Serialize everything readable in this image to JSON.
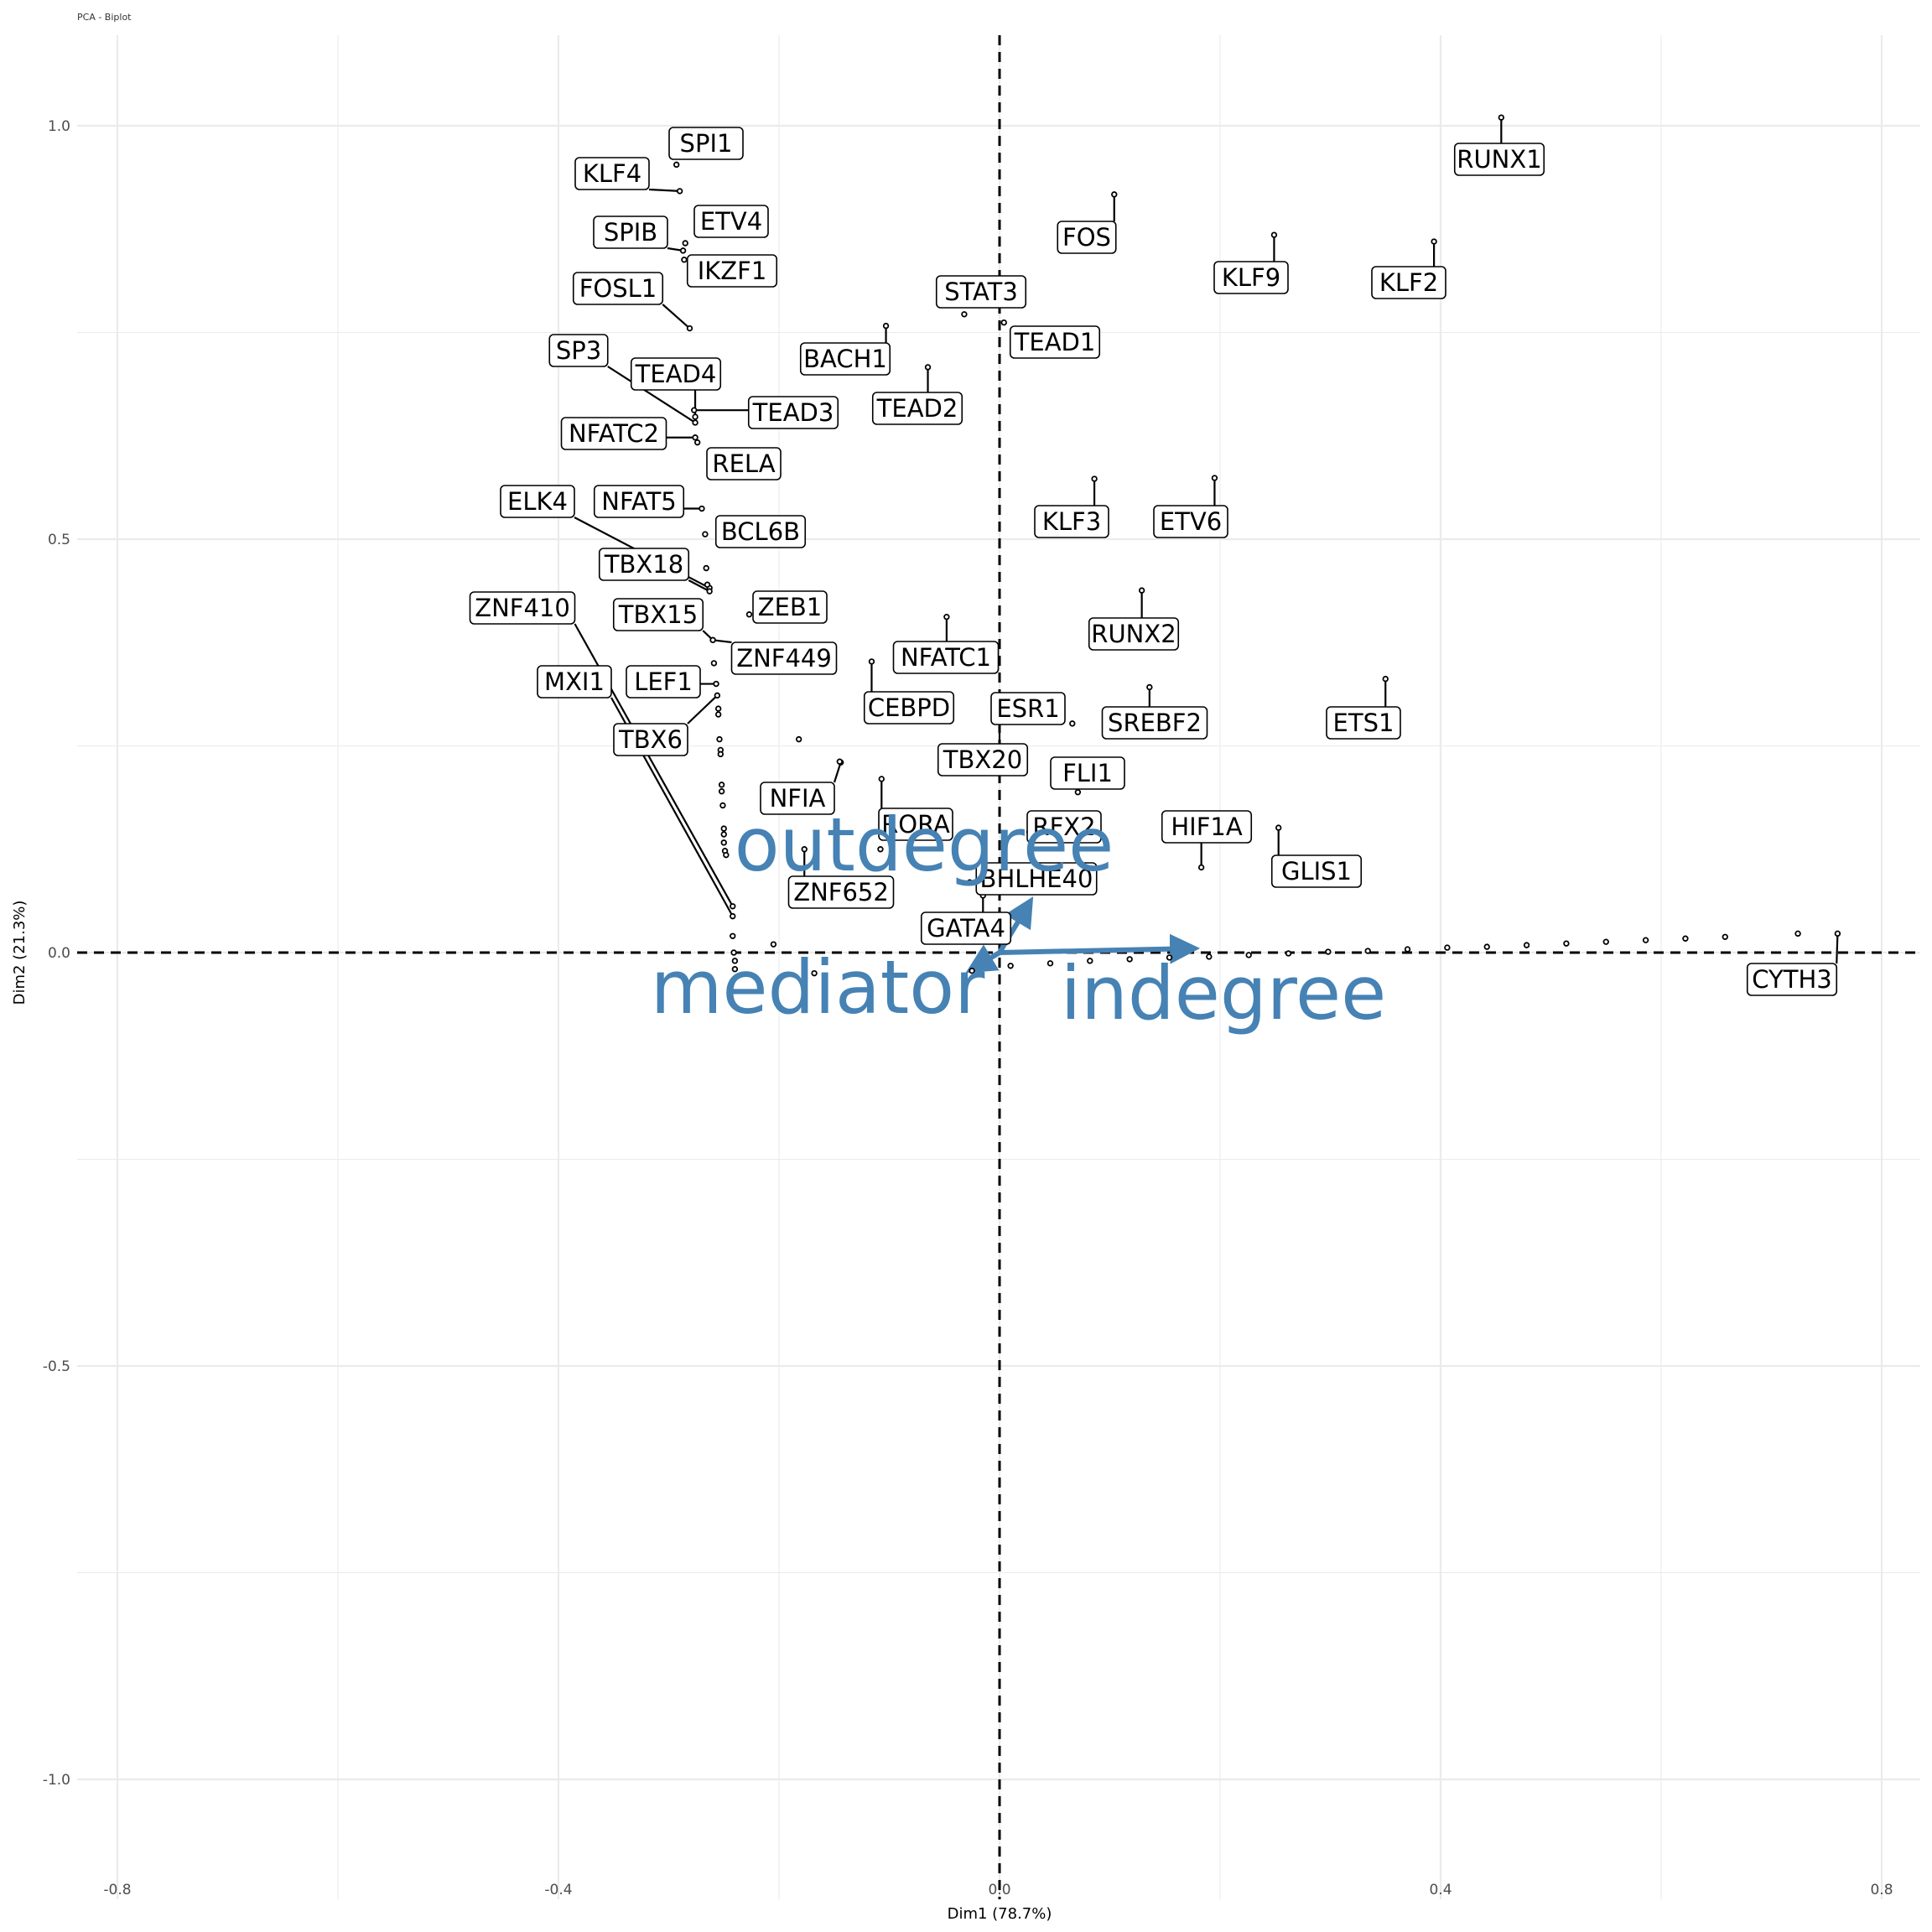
{
  "chart_data": {
    "type": "scatter",
    "title": "PCA - Biplot",
    "xlabel": "Dim1 (78.7%)",
    "ylabel": "Dim2 (21.3%)",
    "xlim": [
      -0.85,
      0.83
    ],
    "ylim": [
      -1.1,
      1.1
    ],
    "x_ticks": [
      -0.8,
      -0.4,
      0.0,
      0.4,
      0.8
    ],
    "x_tick_labels": [
      "-0.8",
      "-0.4",
      "0.0",
      "0.4",
      "0.8"
    ],
    "y_ticks": [
      -1.0,
      -0.5,
      0.0,
      0.5,
      1.0
    ],
    "y_tick_labels": [
      "-1.0",
      "-0.5",
      "0.0",
      "0.5",
      "1.0"
    ],
    "grid": true,
    "reference_lines": {
      "x": 0,
      "y": 0,
      "style": "dashed"
    },
    "colors": {
      "variables": "#4682B4",
      "points": "#000000",
      "grid": "#ebebeb"
    },
    "points": [
      {
        "name": "RUNX1",
        "x": 0.455,
        "y": 1.01
      },
      {
        "name": "KLF2",
        "x": 0.394,
        "y": 0.86
      },
      {
        "name": "KLF9",
        "x": 0.249,
        "y": 0.868
      },
      {
        "name": "FOS",
        "x": 0.104,
        "y": 0.917
      },
      {
        "name": "SPI1",
        "x": -0.293,
        "y": 0.953
      },
      {
        "name": "KLF4",
        "x": -0.29,
        "y": 0.921
      },
      {
        "name": "ETV4",
        "x": -0.285,
        "y": 0.858
      },
      {
        "name": "SPIB",
        "x": -0.287,
        "y": 0.849
      },
      {
        "name": "IKZF1",
        "x": -0.286,
        "y": 0.838
      },
      {
        "name": "STAT3",
        "x": -0.032,
        "y": 0.772
      },
      {
        "name": "TEAD1",
        "x": 0.004,
        "y": 0.762
      },
      {
        "name": "BACH1",
        "x": -0.103,
        "y": 0.758
      },
      {
        "name": "FOSL1",
        "x": -0.281,
        "y": 0.755
      },
      {
        "name": "TEAD2",
        "x": -0.065,
        "y": 0.708
      },
      {
        "name": "SP3",
        "x": -0.276,
        "y": 0.641
      },
      {
        "name": "TEAD3",
        "x": -0.277,
        "y": 0.656
      },
      {
        "name": "TEAD4",
        "x": -0.276,
        "y": 0.648
      },
      {
        "name": "NFATC2",
        "x": -0.276,
        "y": 0.623
      },
      {
        "name": "RELA",
        "x": -0.274,
        "y": 0.617
      },
      {
        "name": "KLF3",
        "x": 0.086,
        "y": 0.573
      },
      {
        "name": "ETV6",
        "x": 0.195,
        "y": 0.574
      },
      {
        "name": "NFAT5",
        "x": -0.27,
        "y": 0.537
      },
      {
        "name": "BCL6B",
        "x": -0.267,
        "y": 0.506
      },
      {
        "name": "ELK4",
        "x": -0.263,
        "y": 0.441
      },
      {
        "name": "TBX18",
        "x": -0.263,
        "y": 0.437
      },
      {
        "name": "RUNX2",
        "x": 0.129,
        "y": 0.438
      },
      {
        "name": "ZEB1",
        "x": -0.227,
        "y": 0.409
      },
      {
        "name": "NFATC1",
        "x": -0.048,
        "y": 0.406
      },
      {
        "name": "TBX15",
        "x": -0.26,
        "y": 0.378
      },
      {
        "name": "ZNF449",
        "x": -0.26,
        "y": 0.378
      },
      {
        "name": "CEBPD",
        "x": -0.116,
        "y": 0.352
      },
      {
        "name": "ETS1",
        "x": 0.35,
        "y": 0.331
      },
      {
        "name": "SREBF2",
        "x": 0.136,
        "y": 0.321
      },
      {
        "name": "ESR1",
        "x": 0.066,
        "y": 0.277
      },
      {
        "name": "LEF1",
        "x": -0.257,
        "y": 0.325
      },
      {
        "name": "TBX6",
        "x": -0.256,
        "y": 0.311
      },
      {
        "name": "TBX20",
        "x": 0.0,
        "y": 0.282
      },
      {
        "name": "FLI1",
        "x": 0.071,
        "y": 0.194
      },
      {
        "name": "NFIA",
        "x": -0.144,
        "y": 0.23
      },
      {
        "name": "RORA",
        "x": -0.107,
        "y": 0.21
      },
      {
        "name": "RFX2",
        "x": 0.027,
        "y": 0.146
      },
      {
        "name": "HIF1A",
        "x": 0.183,
        "y": 0.103
      },
      {
        "name": "GLIS1",
        "x": 0.253,
        "y": 0.151
      },
      {
        "name": "ZNF410",
        "x": -0.242,
        "y": 0.056
      },
      {
        "name": "MXI1",
        "x": -0.242,
        "y": 0.044
      },
      {
        "name": "ZNF652",
        "x": -0.177,
        "y": 0.125
      },
      {
        "name": "BHLHE40",
        "x": -0.027,
        "y": 0.085
      },
      {
        "name": "GATA4",
        "x": -0.015,
        "y": 0.069
      },
      {
        "name": "CYTH3",
        "x": 0.76,
        "y": 0.023
      },
      {
        "name": "",
        "x": -0.266,
        "y": 0.465
      },
      {
        "name": "",
        "x": -0.265,
        "y": 0.445
      },
      {
        "name": "",
        "x": -0.259,
        "y": 0.35
      },
      {
        "name": "",
        "x": -0.255,
        "y": 0.295
      },
      {
        "name": "",
        "x": -0.255,
        "y": 0.288
      },
      {
        "name": "",
        "x": -0.254,
        "y": 0.258
      },
      {
        "name": "",
        "x": -0.253,
        "y": 0.245
      },
      {
        "name": "",
        "x": -0.253,
        "y": 0.24
      },
      {
        "name": "",
        "x": -0.252,
        "y": 0.203
      },
      {
        "name": "",
        "x": -0.252,
        "y": 0.195
      },
      {
        "name": "",
        "x": -0.251,
        "y": 0.178
      },
      {
        "name": "",
        "x": -0.25,
        "y": 0.15
      },
      {
        "name": "",
        "x": -0.25,
        "y": 0.143
      },
      {
        "name": "",
        "x": -0.25,
        "y": 0.133
      },
      {
        "name": "",
        "x": -0.249,
        "y": 0.123
      },
      {
        "name": "",
        "x": -0.248,
        "y": 0.118
      },
      {
        "name": "",
        "x": -0.242,
        "y": 0.02
      },
      {
        "name": "",
        "x": -0.241,
        "y": 0.0
      },
      {
        "name": "",
        "x": -0.24,
        "y": -0.01
      },
      {
        "name": "",
        "x": -0.24,
        "y": -0.02
      },
      {
        "name": "",
        "x": -0.205,
        "y": 0.01
      },
      {
        "name": "",
        "x": -0.182,
        "y": 0.258
      },
      {
        "name": "",
        "x": -0.145,
        "y": 0.231
      },
      {
        "name": "",
        "x": -0.168,
        "y": -0.025
      },
      {
        "name": "",
        "x": -0.108,
        "y": 0.125
      },
      {
        "name": "",
        "x": -0.025,
        "y": -0.022
      },
      {
        "name": "",
        "x": 0.01,
        "y": -0.016
      },
      {
        "name": "",
        "x": 0.046,
        "y": -0.013
      },
      {
        "name": "",
        "x": 0.082,
        "y": -0.01
      },
      {
        "name": "",
        "x": 0.118,
        "y": -0.008
      },
      {
        "name": "",
        "x": 0.154,
        "y": -0.006
      },
      {
        "name": "",
        "x": 0.19,
        "y": -0.005
      },
      {
        "name": "",
        "x": 0.226,
        "y": -0.003
      },
      {
        "name": "",
        "x": 0.262,
        "y": -0.001
      },
      {
        "name": "",
        "x": 0.298,
        "y": 0.001
      },
      {
        "name": "",
        "x": 0.334,
        "y": 0.002
      },
      {
        "name": "",
        "x": 0.37,
        "y": 0.004
      },
      {
        "name": "",
        "x": 0.406,
        "y": 0.006
      },
      {
        "name": "",
        "x": 0.442,
        "y": 0.007
      },
      {
        "name": "",
        "x": 0.478,
        "y": 0.009
      },
      {
        "name": "",
        "x": 0.514,
        "y": 0.011
      },
      {
        "name": "",
        "x": 0.55,
        "y": 0.013
      },
      {
        "name": "",
        "x": 0.586,
        "y": 0.015
      },
      {
        "name": "",
        "x": 0.622,
        "y": 0.017
      },
      {
        "name": "",
        "x": 0.658,
        "y": 0.019
      },
      {
        "name": "",
        "x": 0.724,
        "y": 0.023
      }
    ],
    "variables": [
      {
        "name": "indegree",
        "x": 0.175,
        "y": 0.005
      },
      {
        "name": "outdegree",
        "x": 0.027,
        "y": 0.06
      },
      {
        "name": "mediator",
        "x": -0.025,
        "y": -0.02
      }
    ]
  }
}
